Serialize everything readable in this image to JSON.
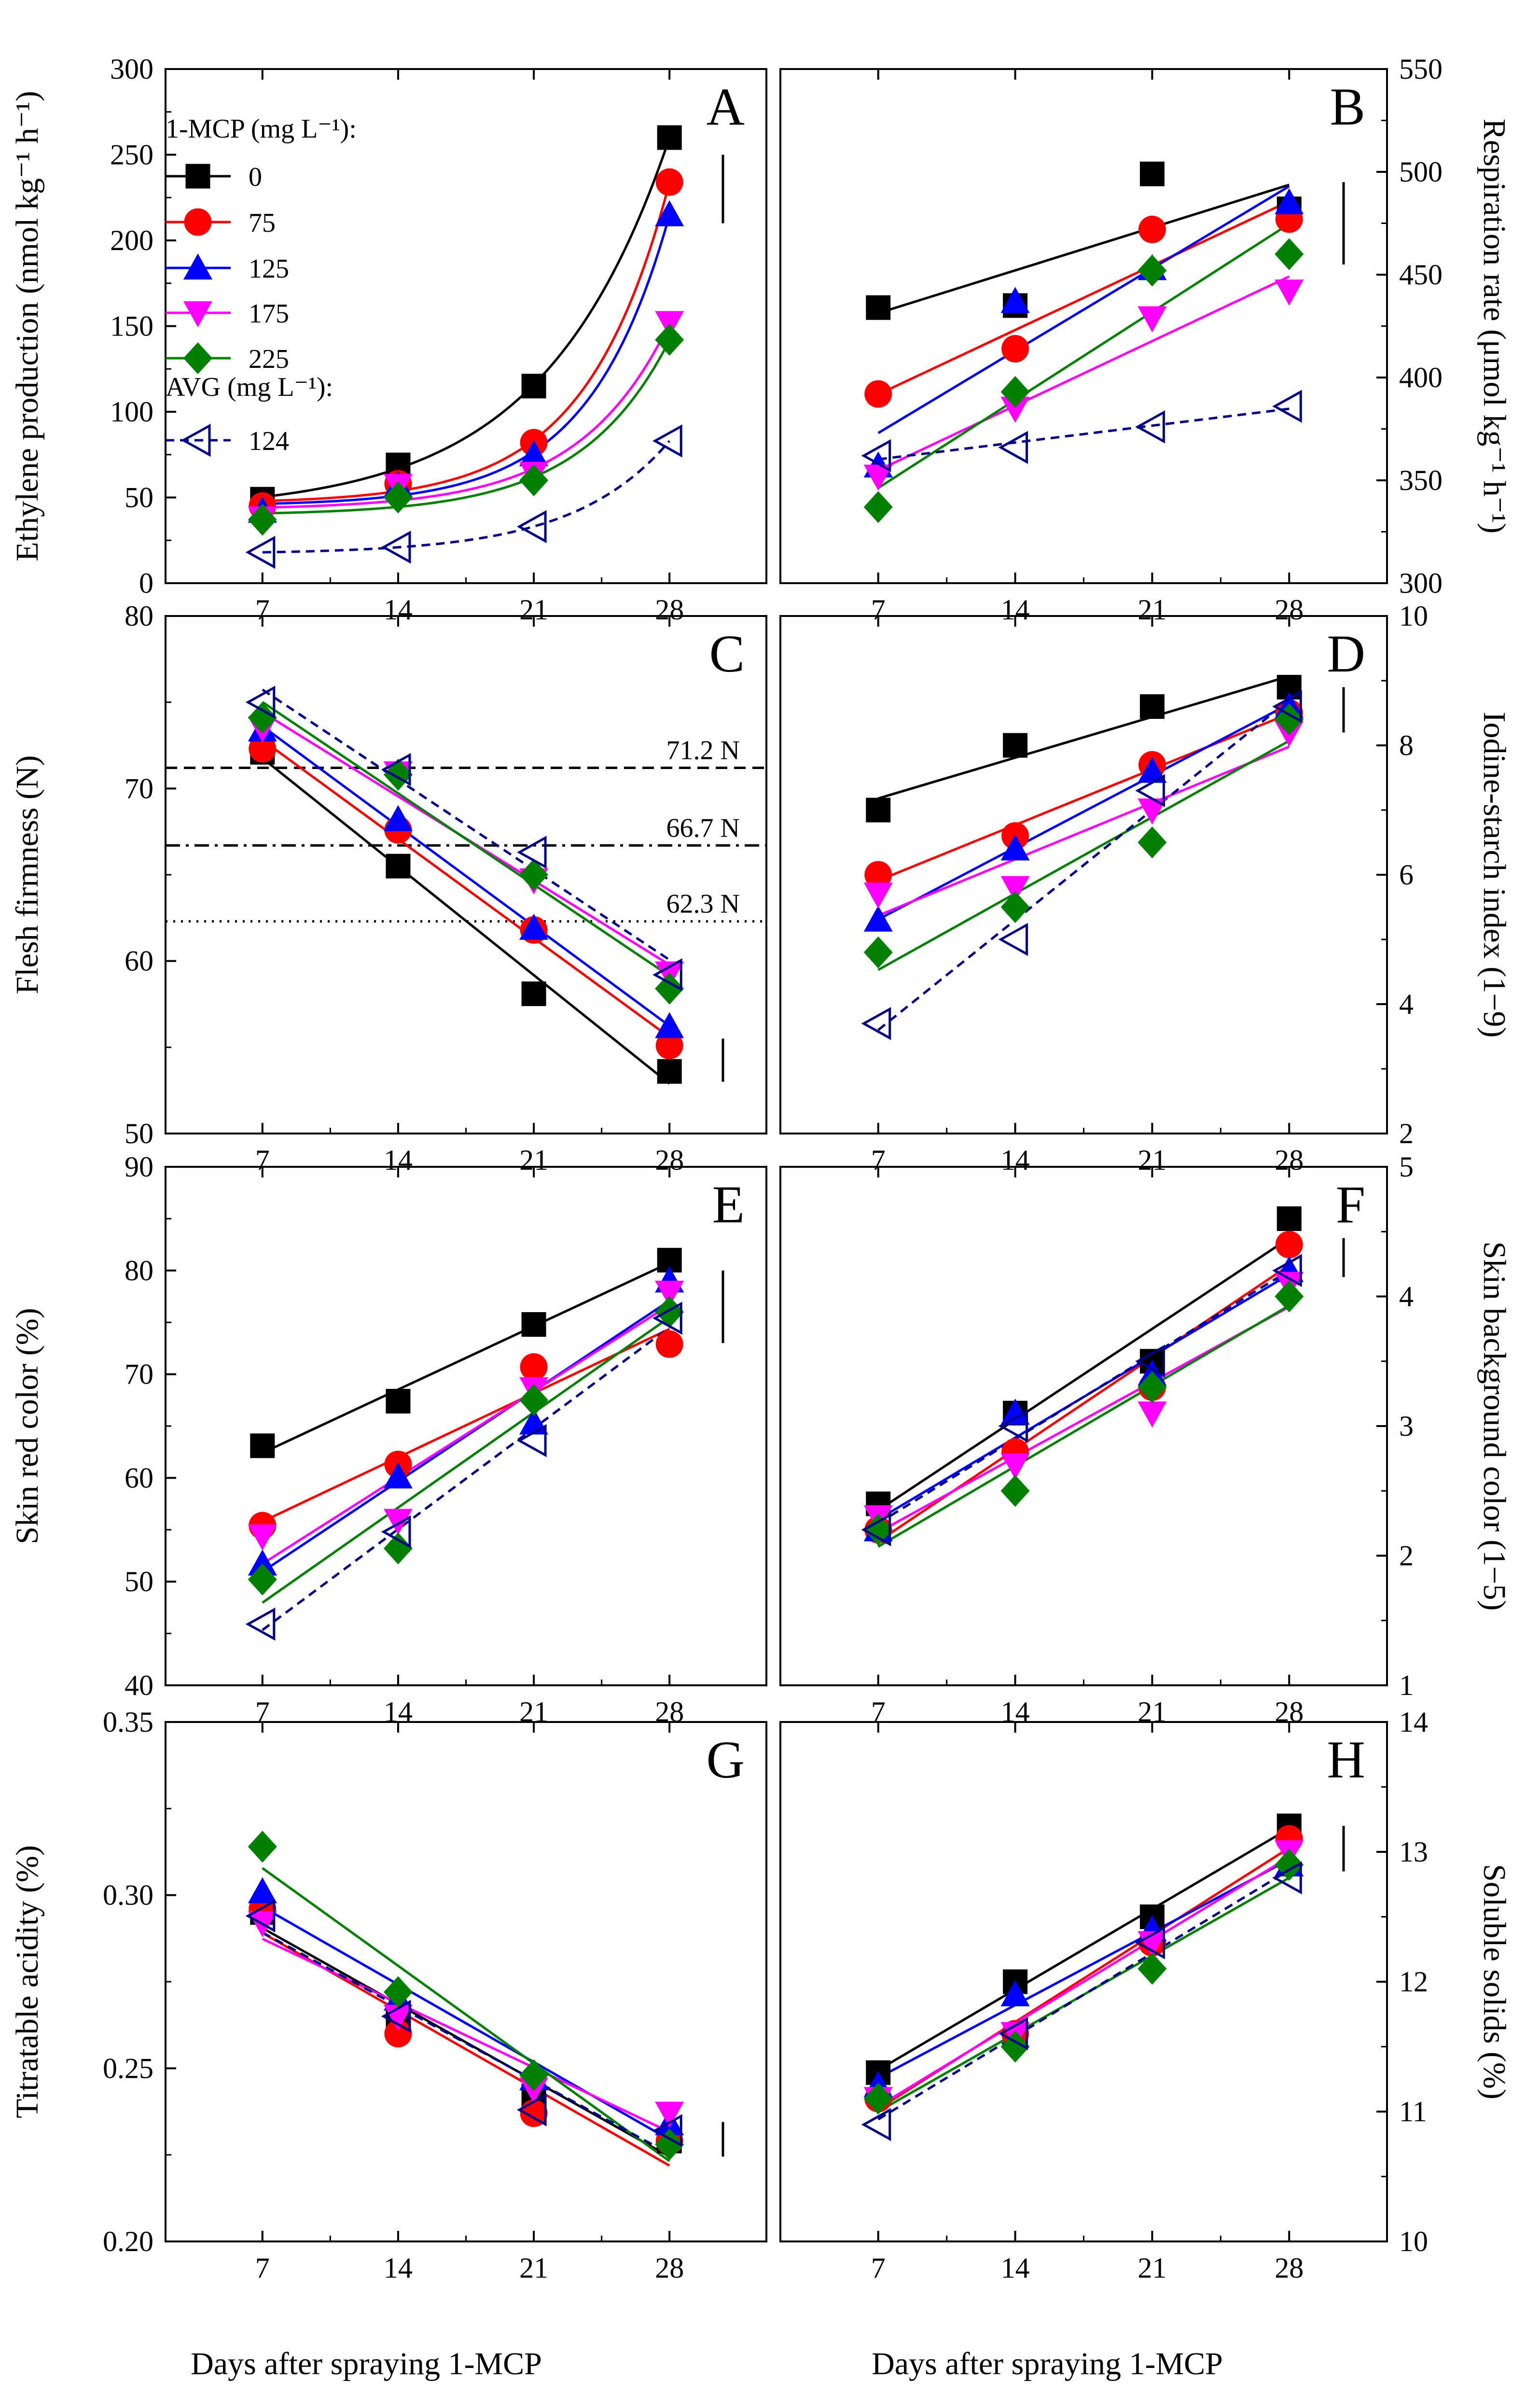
{
  "figure": {
    "xlabel": "Days after spraying 1-MCP",
    "legend": {
      "mcp_title": "1-MCP (mg L⁻¹):",
      "avg_title": "AVG (mg L⁻¹):",
      "entries": [
        {
          "key": "mcp0",
          "label": "0",
          "color": "#000000",
          "marker": "square",
          "dash": false
        },
        {
          "key": "mcp75",
          "label": "75",
          "color": "#ff0000",
          "marker": "circle",
          "dash": false
        },
        {
          "key": "mcp125",
          "label": "125",
          "color": "#0000ff",
          "marker": "triangle-up",
          "dash": false
        },
        {
          "key": "mcp175",
          "label": "175",
          "color": "#ff00ff",
          "marker": "triangle-down",
          "dash": false
        },
        {
          "key": "mcp225",
          "label": "225",
          "color": "#008000",
          "marker": "diamond",
          "dash": false
        },
        {
          "key": "avg124",
          "label": "124",
          "color": "#00008b",
          "marker": "triangle-left",
          "dash": true
        }
      ]
    }
  },
  "chart_data": [
    {
      "panel": "A",
      "type": "scatter",
      "col": 0,
      "row": 0,
      "yaxis_side": "left",
      "fit": "exp",
      "ylabel": "Ethylene production (nmol kg⁻¹ h⁻¹)",
      "ylim": [
        0,
        300
      ],
      "yticks": [
        0,
        50,
        100,
        150,
        200,
        250,
        300
      ],
      "x": [
        7,
        14,
        21,
        28
      ],
      "xticks": [
        7,
        14,
        21,
        28
      ],
      "xlim": [
        2,
        33
      ],
      "error_bar": [
        210,
        250
      ],
      "series": [
        {
          "key": "mcp0",
          "values": [
            49,
            69,
            115,
            260
          ]
        },
        {
          "key": "mcp75",
          "values": [
            45,
            58,
            82,
            234
          ]
        },
        {
          "key": "mcp125",
          "values": [
            42,
            57,
            75,
            215
          ]
        },
        {
          "key": "mcp175",
          "values": [
            38,
            57,
            64,
            152
          ]
        },
        {
          "key": "mcp225",
          "values": [
            37,
            50,
            60,
            142
          ]
        },
        {
          "key": "avg124",
          "values": [
            18,
            21,
            33,
            83
          ]
        }
      ]
    },
    {
      "panel": "B",
      "type": "scatter",
      "col": 1,
      "row": 0,
      "yaxis_side": "right",
      "fit": "linear",
      "ylabel": "Respiration rate (μmol kg⁻¹ h⁻¹)",
      "ylim": [
        300,
        550
      ],
      "yticks": [
        300,
        350,
        400,
        450,
        500,
        550
      ],
      "x": [
        7,
        14,
        21,
        28
      ],
      "xticks": [
        7,
        14,
        21,
        28
      ],
      "xlim": [
        2,
        33
      ],
      "error_bar": [
        455,
        495
      ],
      "series": [
        {
          "key": "mcp0",
          "values": [
            434,
            435,
            499,
            482
          ]
        },
        {
          "key": "mcp75",
          "values": [
            392,
            414,
            472,
            477
          ]
        },
        {
          "key": "mcp125",
          "values": [
            357,
            437,
            453,
            485
          ]
        },
        {
          "key": "mcp175",
          "values": [
            352,
            385,
            429,
            442
          ]
        },
        {
          "key": "mcp225",
          "values": [
            337,
            393,
            452,
            460
          ]
        },
        {
          "key": "avg124",
          "values": [
            362,
            366,
            376,
            386
          ]
        }
      ]
    },
    {
      "panel": "C",
      "type": "scatter",
      "col": 0,
      "row": 1,
      "yaxis_side": "left",
      "fit": "linear",
      "ylabel": "Flesh firmness (N)",
      "ylim": [
        50,
        80
      ],
      "yticks": [
        50,
        60,
        70,
        80
      ],
      "x": [
        7,
        14,
        21,
        28
      ],
      "xticks": [
        7,
        14,
        21,
        28
      ],
      "xlim": [
        2,
        33
      ],
      "error_bar": [
        53,
        55.5
      ],
      "ref_lines": [
        {
          "value": 71.2,
          "label": "71.2 N",
          "style": "dash"
        },
        {
          "value": 66.7,
          "label": "66.7 N",
          "style": "dashdot"
        },
        {
          "value": 62.3,
          "label": "62.3 N",
          "style": "dot"
        }
      ],
      "series": [
        {
          "key": "mcp0",
          "values": [
            72.1,
            65.5,
            58.1,
            53.6
          ]
        },
        {
          "key": "mcp75",
          "values": [
            72.3,
            67.6,
            61.8,
            55.1
          ]
        },
        {
          "key": "mcp125",
          "values": [
            73.4,
            68.2,
            61.9,
            56.2
          ]
        },
        {
          "key": "mcp175",
          "values": [
            73.5,
            70.9,
            64.7,
            59.3
          ]
        },
        {
          "key": "mcp225",
          "values": [
            74.1,
            70.8,
            65.0,
            58.4
          ]
        },
        {
          "key": "avg124",
          "values": [
            75.0,
            71.1,
            66.3,
            59.2
          ]
        }
      ]
    },
    {
      "panel": "D",
      "type": "scatter",
      "col": 1,
      "row": 1,
      "yaxis_side": "right",
      "fit": "linear",
      "ylabel": "Iodine-starch index (1−9)",
      "ylim": [
        2,
        10
      ],
      "yticks": [
        2,
        4,
        6,
        8,
        10
      ],
      "x": [
        7,
        14,
        21,
        28
      ],
      "xticks": [
        7,
        14,
        21,
        28
      ],
      "xlim": [
        2,
        33
      ],
      "error_bar": [
        8.2,
        8.9
      ],
      "series": [
        {
          "key": "mcp0",
          "values": [
            7.0,
            8.0,
            8.6,
            8.9
          ]
        },
        {
          "key": "mcp75",
          "values": [
            6.0,
            6.6,
            7.7,
            8.5
          ]
        },
        {
          "key": "mcp125",
          "values": [
            5.3,
            6.4,
            7.6,
            8.6
          ]
        },
        {
          "key": "mcp175",
          "values": [
            5.7,
            5.8,
            7.0,
            8.2
          ]
        },
        {
          "key": "mcp225",
          "values": [
            4.8,
            5.5,
            6.5,
            8.4
          ]
        },
        {
          "key": "avg124",
          "values": [
            3.7,
            5.0,
            7.3,
            8.6
          ]
        }
      ]
    },
    {
      "panel": "E",
      "type": "scatter",
      "col": 0,
      "row": 2,
      "yaxis_side": "left",
      "fit": "linear",
      "ylabel": "Skin red color (%)",
      "ylim": [
        40,
        90
      ],
      "yticks": [
        40,
        50,
        60,
        70,
        80,
        90
      ],
      "x": [
        7,
        14,
        21,
        28
      ],
      "xticks": [
        7,
        14,
        21,
        28
      ],
      "xlim": [
        2,
        33
      ],
      "error_bar": [
        73,
        80
      ],
      "series": [
        {
          "key": "mcp0",
          "values": [
            63.1,
            67.4,
            74.8,
            81.0
          ]
        },
        {
          "key": "mcp75",
          "values": [
            55.4,
            61.3,
            70.7,
            72.9
          ]
        },
        {
          "key": "mcp125",
          "values": [
            51.7,
            60.1,
            65.3,
            79.0
          ]
        },
        {
          "key": "mcp175",
          "values": [
            54.4,
            55.9,
            68.6,
            77.9
          ]
        },
        {
          "key": "mcp225",
          "values": [
            50.2,
            53.2,
            67.5,
            76.0
          ]
        },
        {
          "key": "avg124",
          "values": [
            45.9,
            54.8,
            63.6,
            75.4
          ]
        }
      ]
    },
    {
      "panel": "F",
      "type": "scatter",
      "col": 1,
      "row": 2,
      "yaxis_side": "right",
      "fit": "linear",
      "ylabel": "Skin background color (1−5)",
      "ylim": [
        1,
        5
      ],
      "yticks": [
        1,
        2,
        3,
        4,
        5
      ],
      "x": [
        7,
        14,
        21,
        28
      ],
      "xticks": [
        7,
        14,
        21,
        28
      ],
      "xlim": [
        2,
        33
      ],
      "error_bar": [
        4.15,
        4.45
      ],
      "series": [
        {
          "key": "mcp0",
          "values": [
            2.4,
            3.1,
            3.5,
            4.6
          ]
        },
        {
          "key": "mcp75",
          "values": [
            2.2,
            2.8,
            3.3,
            4.4
          ]
        },
        {
          "key": "mcp125",
          "values": [
            2.2,
            3.1,
            3.4,
            4.2
          ]
        },
        {
          "key": "mcp175",
          "values": [
            2.3,
            2.7,
            3.1,
            4.1
          ]
        },
        {
          "key": "mcp225",
          "values": [
            2.2,
            2.5,
            3.3,
            4.0
          ]
        },
        {
          "key": "avg124",
          "values": [
            2.2,
            3.0,
            3.5,
            4.2
          ]
        }
      ]
    },
    {
      "panel": "G",
      "type": "scatter",
      "col": 0,
      "row": 3,
      "yaxis_side": "left",
      "fit": "linear",
      "ylabel": "Titratable acidity (%)",
      "ylim": [
        0.2,
        0.35
      ],
      "yticks": [
        0.2,
        0.25,
        0.3,
        0.35
      ],
      "x": [
        7,
        14,
        21,
        28
      ],
      "xticks": [
        7,
        14,
        21,
        28
      ],
      "xlim": [
        2,
        33
      ],
      "error_bar": [
        0.2245,
        0.2345
      ],
      "series": [
        {
          "key": "mcp0",
          "values": [
            0.295,
            0.264,
            0.242,
            0.229
          ]
        },
        {
          "key": "mcp75",
          "values": [
            0.296,
            0.26,
            0.237,
            0.229
          ]
        },
        {
          "key": "mcp125",
          "values": [
            0.301,
            0.27,
            0.247,
            0.234
          ]
        },
        {
          "key": "mcp175",
          "values": [
            0.292,
            0.265,
            0.244,
            0.237
          ]
        },
        {
          "key": "mcp225",
          "values": [
            0.314,
            0.272,
            0.248,
            0.228
          ]
        },
        {
          "key": "avg124",
          "values": [
            0.294,
            0.265,
            0.238,
            0.232
          ]
        }
      ]
    },
    {
      "panel": "H",
      "type": "scatter",
      "col": 1,
      "row": 3,
      "yaxis_side": "right",
      "fit": "linear",
      "ylabel": "Soluble solids (%)",
      "ylim": [
        10,
        14
      ],
      "yticks": [
        10,
        11,
        12,
        13,
        14
      ],
      "x": [
        7,
        14,
        21,
        28
      ],
      "xticks": [
        7,
        14,
        21,
        28
      ],
      "xlim": [
        2,
        33
      ],
      "error_bar": [
        12.85,
        13.2
      ],
      "series": [
        {
          "key": "mcp0",
          "values": [
            11.3,
            12.0,
            12.5,
            13.2
          ]
        },
        {
          "key": "mcp75",
          "values": [
            11.1,
            11.6,
            12.3,
            13.1
          ]
        },
        {
          "key": "mcp125",
          "values": [
            11.2,
            11.9,
            12.4,
            12.9
          ]
        },
        {
          "key": "mcp175",
          "values": [
            11.1,
            11.6,
            12.3,
            13.0
          ]
        },
        {
          "key": "mcp225",
          "values": [
            11.1,
            11.5,
            12.1,
            12.9
          ]
        },
        {
          "key": "avg124",
          "values": [
            10.9,
            11.6,
            12.3,
            12.8
          ]
        }
      ]
    }
  ]
}
